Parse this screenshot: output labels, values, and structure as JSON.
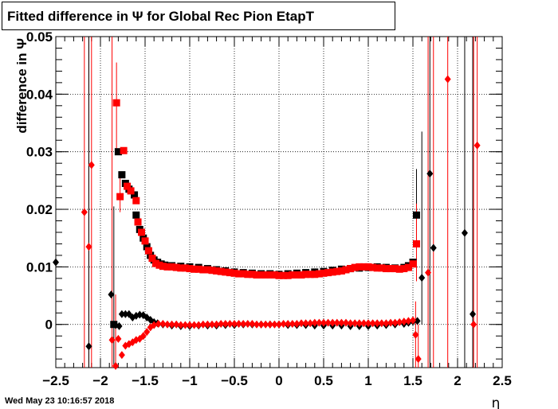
{
  "title": "Fitted difference in  Ψ  for Global Rec Pion EtapT",
  "footer_date": "Wed May 23 10:16:57 2018",
  "chart_data": {
    "type": "scatter",
    "title": "Fitted difference in  Ψ  for Global Rec Pion EtapT",
    "xlabel": "η",
    "ylabel": "difference in  Ψ",
    "xlim": [
      -2.5,
      2.5
    ],
    "ylim": [
      -0.0075,
      0.05
    ],
    "grid": true,
    "xticks": [
      -2.5,
      -2,
      -1.5,
      -1,
      -0.5,
      0,
      0.5,
      1,
      1.5,
      2,
      2.5
    ],
    "xtick_labels": [
      "−2.5",
      "−2",
      "−1.5",
      "−1",
      "−0.5",
      "0",
      "0.5",
      "1",
      "1.5",
      "2",
      "2.5"
    ],
    "yticks": [
      0,
      0.01,
      0.02,
      0.03,
      0.04,
      0.05
    ],
    "ytick_labels": [
      "0",
      "0.01",
      "0.02",
      "0.03",
      "0.04",
      "0.05"
    ],
    "colors": {
      "black": "#000000",
      "red": "#ff0000"
    },
    "series": [
      {
        "marker": "square",
        "color": "#000000",
        "points": [
          [
            -1.85,
            0.0
          ],
          [
            -1.8,
            0.03
          ],
          [
            -1.76,
            0.026
          ],
          [
            -1.72,
            0.0245
          ],
          [
            -1.68,
            0.0235
          ],
          [
            -1.62,
            0.0225
          ],
          [
            -1.6,
            0.019
          ],
          [
            -1.56,
            0.0165
          ],
          [
            -1.52,
            0.015
          ],
          [
            -1.48,
            0.0135
          ],
          [
            -1.44,
            0.012
          ],
          [
            -1.4,
            0.0112
          ],
          [
            -1.36,
            0.0108
          ],
          [
            -1.32,
            0.0105
          ],
          [
            -1.28,
            0.0103
          ],
          [
            -1.2,
            0.0102
          ],
          [
            -1.1,
            0.0101
          ],
          [
            -1.0,
            0.01
          ],
          [
            -0.9,
            0.0099
          ],
          [
            -0.8,
            0.0097
          ],
          [
            -0.7,
            0.0095
          ],
          [
            -0.6,
            0.0093
          ],
          [
            -0.5,
            0.0091
          ],
          [
            -0.4,
            0.009
          ],
          [
            -0.3,
            0.0089
          ],
          [
            -0.2,
            0.0088
          ],
          [
            -0.1,
            0.0088
          ],
          [
            0.0,
            0.0087
          ],
          [
            0.1,
            0.0088
          ],
          [
            0.2,
            0.0089
          ],
          [
            0.3,
            0.009
          ],
          [
            0.4,
            0.0091
          ],
          [
            0.5,
            0.0092
          ],
          [
            0.6,
            0.0094
          ],
          [
            0.7,
            0.0096
          ],
          [
            0.8,
            0.0097
          ],
          [
            0.9,
            0.0098
          ],
          [
            1.0,
            0.0099
          ],
          [
            1.1,
            0.01
          ],
          [
            1.2,
            0.0099
          ],
          [
            1.3,
            0.0098
          ],
          [
            1.4,
            0.0099
          ],
          [
            1.45,
            0.0102
          ],
          [
            1.5,
            0.0108
          ],
          [
            1.54,
            0.019
          ]
        ]
      },
      {
        "marker": "square",
        "color": "#ff0000",
        "points": [
          [
            -1.82,
            0.0385
          ],
          [
            -1.78,
            0.0222
          ],
          [
            -1.74,
            0.0302
          ],
          [
            -1.7,
            0.024
          ],
          [
            -1.66,
            0.0232
          ],
          [
            -1.6,
            0.0215
          ],
          [
            -1.58,
            0.0178
          ],
          [
            -1.54,
            0.016
          ],
          [
            -1.5,
            0.0145
          ],
          [
            -1.46,
            0.0128
          ],
          [
            -1.42,
            0.0115
          ],
          [
            -1.38,
            0.0106
          ],
          [
            -1.34,
            0.0103
          ],
          [
            -1.3,
            0.0101
          ],
          [
            -1.25,
            0.01
          ],
          [
            -1.2,
            0.01
          ],
          [
            -1.15,
            0.0099
          ],
          [
            -1.1,
            0.0098
          ],
          [
            -1.05,
            0.0098
          ],
          [
            -1.0,
            0.0097
          ],
          [
            -0.95,
            0.0096
          ],
          [
            -0.9,
            0.0096
          ],
          [
            -0.85,
            0.0095
          ],
          [
            -0.8,
            0.0095
          ],
          [
            -0.75,
            0.0094
          ],
          [
            -0.7,
            0.0093
          ],
          [
            -0.65,
            0.0092
          ],
          [
            -0.6,
            0.0091
          ],
          [
            -0.55,
            0.009
          ],
          [
            -0.5,
            0.0089
          ],
          [
            -0.45,
            0.0088
          ],
          [
            -0.4,
            0.0088
          ],
          [
            -0.35,
            0.0087
          ],
          [
            -0.3,
            0.0087
          ],
          [
            -0.25,
            0.0086
          ],
          [
            -0.2,
            0.0086
          ],
          [
            -0.15,
            0.0086
          ],
          [
            -0.1,
            0.0086
          ],
          [
            -0.05,
            0.0086
          ],
          [
            0.0,
            0.0085
          ],
          [
            0.05,
            0.0085
          ],
          [
            0.1,
            0.0085
          ],
          [
            0.15,
            0.0086
          ],
          [
            0.2,
            0.0086
          ],
          [
            0.25,
            0.0086
          ],
          [
            0.3,
            0.0087
          ],
          [
            0.35,
            0.0087
          ],
          [
            0.4,
            0.0087
          ],
          [
            0.45,
            0.0088
          ],
          [
            0.5,
            0.0089
          ],
          [
            0.55,
            0.009
          ],
          [
            0.6,
            0.0091
          ],
          [
            0.65,
            0.0092
          ],
          [
            0.7,
            0.0093
          ],
          [
            0.75,
            0.0095
          ],
          [
            0.8,
            0.0097
          ],
          [
            0.85,
            0.0099
          ],
          [
            0.9,
            0.01
          ],
          [
            0.95,
            0.01
          ],
          [
            1.0,
            0.01
          ],
          [
            1.05,
            0.0099
          ],
          [
            1.1,
            0.0098
          ],
          [
            1.15,
            0.0098
          ],
          [
            1.2,
            0.0097
          ],
          [
            1.25,
            0.0097
          ],
          [
            1.3,
            0.0097
          ],
          [
            1.35,
            0.0096
          ],
          [
            1.4,
            0.0097
          ],
          [
            1.45,
            0.0099
          ],
          [
            1.5,
            0.0105
          ],
          [
            1.54,
            0.014
          ]
        ]
      },
      {
        "marker": "diamond",
        "color": "#000000",
        "points": [
          [
            -2.5,
            0.0108
          ],
          [
            -2.13,
            -0.0038
          ],
          [
            -1.88,
            0.0052
          ],
          [
            -1.83,
            -0.0001
          ],
          [
            -1.79,
            -0.0003
          ],
          [
            -1.76,
            0.0018
          ],
          [
            -1.72,
            0.0018
          ],
          [
            -1.68,
            0.0018
          ],
          [
            -1.64,
            0.0012
          ],
          [
            -1.6,
            0.0015
          ],
          [
            -1.56,
            0.0017
          ],
          [
            -1.52,
            0.0016
          ],
          [
            -1.48,
            0.0012
          ],
          [
            -1.44,
            0.0008
          ],
          [
            -1.4,
            0.0004
          ],
          [
            -1.36,
            0.0002
          ],
          [
            -1.3,
            0.0
          ],
          [
            -1.2,
            -0.0002
          ],
          [
            -1.1,
            -0.0003
          ],
          [
            -1.0,
            -0.0003
          ],
          [
            -0.9,
            -0.0002
          ],
          [
            -0.8,
            -0.0002
          ],
          [
            -0.7,
            -0.0002
          ],
          [
            -0.6,
            -0.0001
          ],
          [
            -0.5,
            -0.0001
          ],
          [
            -0.4,
            0.0
          ],
          [
            -0.3,
            0.0
          ],
          [
            -0.2,
            0.0
          ],
          [
            -0.1,
            0.0
          ],
          [
            0.0,
            0.0
          ],
          [
            0.1,
            -0.0001
          ],
          [
            0.2,
            -0.0001
          ],
          [
            0.3,
            -0.0001
          ],
          [
            0.4,
            -0.0002
          ],
          [
            0.5,
            -0.0002
          ],
          [
            0.6,
            -0.0002
          ],
          [
            0.7,
            -0.0002
          ],
          [
            0.8,
            -0.0003
          ],
          [
            0.9,
            -0.0003
          ],
          [
            1.0,
            -0.0003
          ],
          [
            1.1,
            -0.0002
          ],
          [
            1.2,
            -0.0001
          ],
          [
            1.3,
            0.0
          ],
          [
            1.4,
            0.0001
          ],
          [
            1.45,
            0.0003
          ],
          [
            1.5,
            0.0005
          ],
          [
            1.55,
            0.0006
          ],
          [
            1.6,
            0.0081
          ],
          [
            1.69,
            0.0262
          ],
          [
            1.73,
            0.0133
          ],
          [
            2.08,
            0.0159
          ],
          [
            2.17,
            0.0018
          ]
        ]
      },
      {
        "marker": "diamond",
        "color": "#ff0000",
        "points": [
          [
            -2.18,
            0.0195
          ],
          [
            -2.13,
            0.0135
          ],
          [
            -2.1,
            0.0277
          ],
          [
            -1.87,
            -0.0027
          ],
          [
            -1.83,
            -0.0072
          ],
          [
            -1.8,
            -0.0025
          ],
          [
            -1.76,
            -0.0053
          ],
          [
            -1.72,
            -0.0037
          ],
          [
            -1.68,
            -0.0034
          ],
          [
            -1.64,
            -0.0031
          ],
          [
            -1.6,
            -0.0027
          ],
          [
            -1.56,
            -0.0025
          ],
          [
            -1.52,
            -0.002
          ],
          [
            -1.48,
            -0.0013
          ],
          [
            -1.44,
            -0.0005
          ],
          [
            -1.4,
            -0.0001
          ],
          [
            -1.35,
            0.0001
          ],
          [
            -1.3,
            0.0001
          ],
          [
            -1.25,
            0.0
          ],
          [
            -1.2,
            0.0
          ],
          [
            -1.15,
            0.0
          ],
          [
            -1.1,
            -0.0001
          ],
          [
            -1.05,
            -0.0001
          ],
          [
            -1.0,
            -0.0001
          ],
          [
            -0.95,
            -0.0001
          ],
          [
            -0.9,
            -0.0001
          ],
          [
            -0.85,
            0.0
          ],
          [
            -0.8,
            0.0
          ],
          [
            -0.75,
            0.0
          ],
          [
            -0.7,
            0.0
          ],
          [
            -0.65,
            0.0001
          ],
          [
            -0.6,
            0.0001
          ],
          [
            -0.55,
            0.0001
          ],
          [
            -0.5,
            0.0001
          ],
          [
            -0.45,
            0.0001
          ],
          [
            -0.4,
            0.0001
          ],
          [
            -0.35,
            0.0001
          ],
          [
            -0.3,
            0.0001
          ],
          [
            -0.25,
            0.0
          ],
          [
            -0.2,
            0.0
          ],
          [
            -0.15,
            0.0
          ],
          [
            -0.1,
            0.0
          ],
          [
            -0.05,
            0.0
          ],
          [
            0.0,
            0.0
          ],
          [
            0.05,
            0.0001
          ],
          [
            0.1,
            0.0001
          ],
          [
            0.15,
            0.0001
          ],
          [
            0.2,
            0.0001
          ],
          [
            0.25,
            0.0002
          ],
          [
            0.3,
            0.0002
          ],
          [
            0.35,
            0.0002
          ],
          [
            0.4,
            0.0003
          ],
          [
            0.45,
            0.0003
          ],
          [
            0.5,
            0.0003
          ],
          [
            0.55,
            0.0003
          ],
          [
            0.6,
            0.0003
          ],
          [
            0.65,
            0.0003
          ],
          [
            0.7,
            0.0003
          ],
          [
            0.75,
            0.0003
          ],
          [
            0.8,
            0.0002
          ],
          [
            0.85,
            0.0002
          ],
          [
            0.9,
            0.0002
          ],
          [
            0.95,
            0.0002
          ],
          [
            1.0,
            0.0002
          ],
          [
            1.05,
            0.0002
          ],
          [
            1.1,
            0.0002
          ],
          [
            1.15,
            0.0002
          ],
          [
            1.2,
            0.0002
          ],
          [
            1.25,
            0.0003
          ],
          [
            1.3,
            0.0003
          ],
          [
            1.35,
            0.0004
          ],
          [
            1.4,
            0.0005
          ],
          [
            1.45,
            0.0006
          ],
          [
            1.5,
            0.0007
          ],
          [
            1.53,
            -0.0018
          ],
          [
            1.56,
            -0.006
          ],
          [
            1.67,
            0.009
          ],
          [
            1.89,
            0.0426
          ],
          [
            2.18,
            0.0
          ],
          [
            2.22,
            0.0311
          ]
        ]
      }
    ],
    "error_bars": [
      {
        "x": -1.82,
        "y": 0.0385,
        "lo": 0.0305,
        "hi": 0.0455,
        "color": "#ff0000"
      },
      {
        "x": -1.85,
        "y": 0.0,
        "lo": -0.0075,
        "hi": 0.0205,
        "color": "#000000"
      },
      {
        "x": -1.78,
        "y": 0.0222,
        "lo": 0.0195,
        "hi": 0.0255,
        "color": "#ff0000"
      },
      {
        "x": -1.87,
        "y": -0.0027,
        "lo": -0.0075,
        "hi": 0.05,
        "color": "#ff0000"
      },
      {
        "x": -2.13,
        "y": 0.0135,
        "lo": -0.0075,
        "hi": 0.05,
        "color": "#ff0000"
      },
      {
        "x": -2.18,
        "y": 0.0195,
        "lo": -0.0075,
        "hi": 0.05,
        "color": "#ff0000"
      },
      {
        "x": -2.1,
        "y": 0.0277,
        "lo": -0.0075,
        "hi": 0.05,
        "color": "#ff0000"
      },
      {
        "x": -2.13,
        "y": -0.0038,
        "lo": -0.0075,
        "hi": 0.05,
        "color": "#000000"
      },
      {
        "x": -1.83,
        "y": -0.0072,
        "lo": -0.0075,
        "hi": 0.0052,
        "color": "#ff0000"
      },
      {
        "x": 1.54,
        "y": 0.019,
        "lo": 0.013,
        "hi": 0.027,
        "color": "#000000"
      },
      {
        "x": 1.54,
        "y": 0.014,
        "lo": 0.0075,
        "hi": 0.021,
        "color": "#ff0000"
      },
      {
        "x": 1.53,
        "y": -0.0018,
        "lo": -0.0075,
        "hi": 0.004,
        "color": "#ff0000"
      },
      {
        "x": 1.56,
        "y": -0.006,
        "lo": -0.0075,
        "hi": 0.0,
        "color": "#ff0000"
      },
      {
        "x": 1.6,
        "y": 0.0081,
        "lo": 0.0,
        "hi": 0.0335,
        "color": "#000000"
      },
      {
        "x": 1.67,
        "y": 0.009,
        "lo": -0.0075,
        "hi": 0.05,
        "color": "#ff0000"
      },
      {
        "x": 1.69,
        "y": 0.0262,
        "lo": -0.0075,
        "hi": 0.05,
        "color": "#000000"
      },
      {
        "x": 1.73,
        "y": 0.0133,
        "lo": -0.0075,
        "hi": 0.05,
        "color": "#ff0000"
      },
      {
        "x": 1.89,
        "y": 0.0426,
        "lo": -0.0075,
        "hi": 0.05,
        "color": "#ff0000"
      },
      {
        "x": 2.08,
        "y": 0.0159,
        "lo": -0.0075,
        "hi": 0.05,
        "color": "#000000"
      },
      {
        "x": 2.17,
        "y": 0.0018,
        "lo": -0.0075,
        "hi": 0.05,
        "color": "#000000"
      },
      {
        "x": 2.18,
        "y": 0.0,
        "lo": -0.0075,
        "hi": 0.05,
        "color": "#ff0000"
      },
      {
        "x": 2.22,
        "y": 0.0311,
        "lo": -0.0075,
        "hi": 0.05,
        "color": "#ff0000"
      }
    ]
  }
}
